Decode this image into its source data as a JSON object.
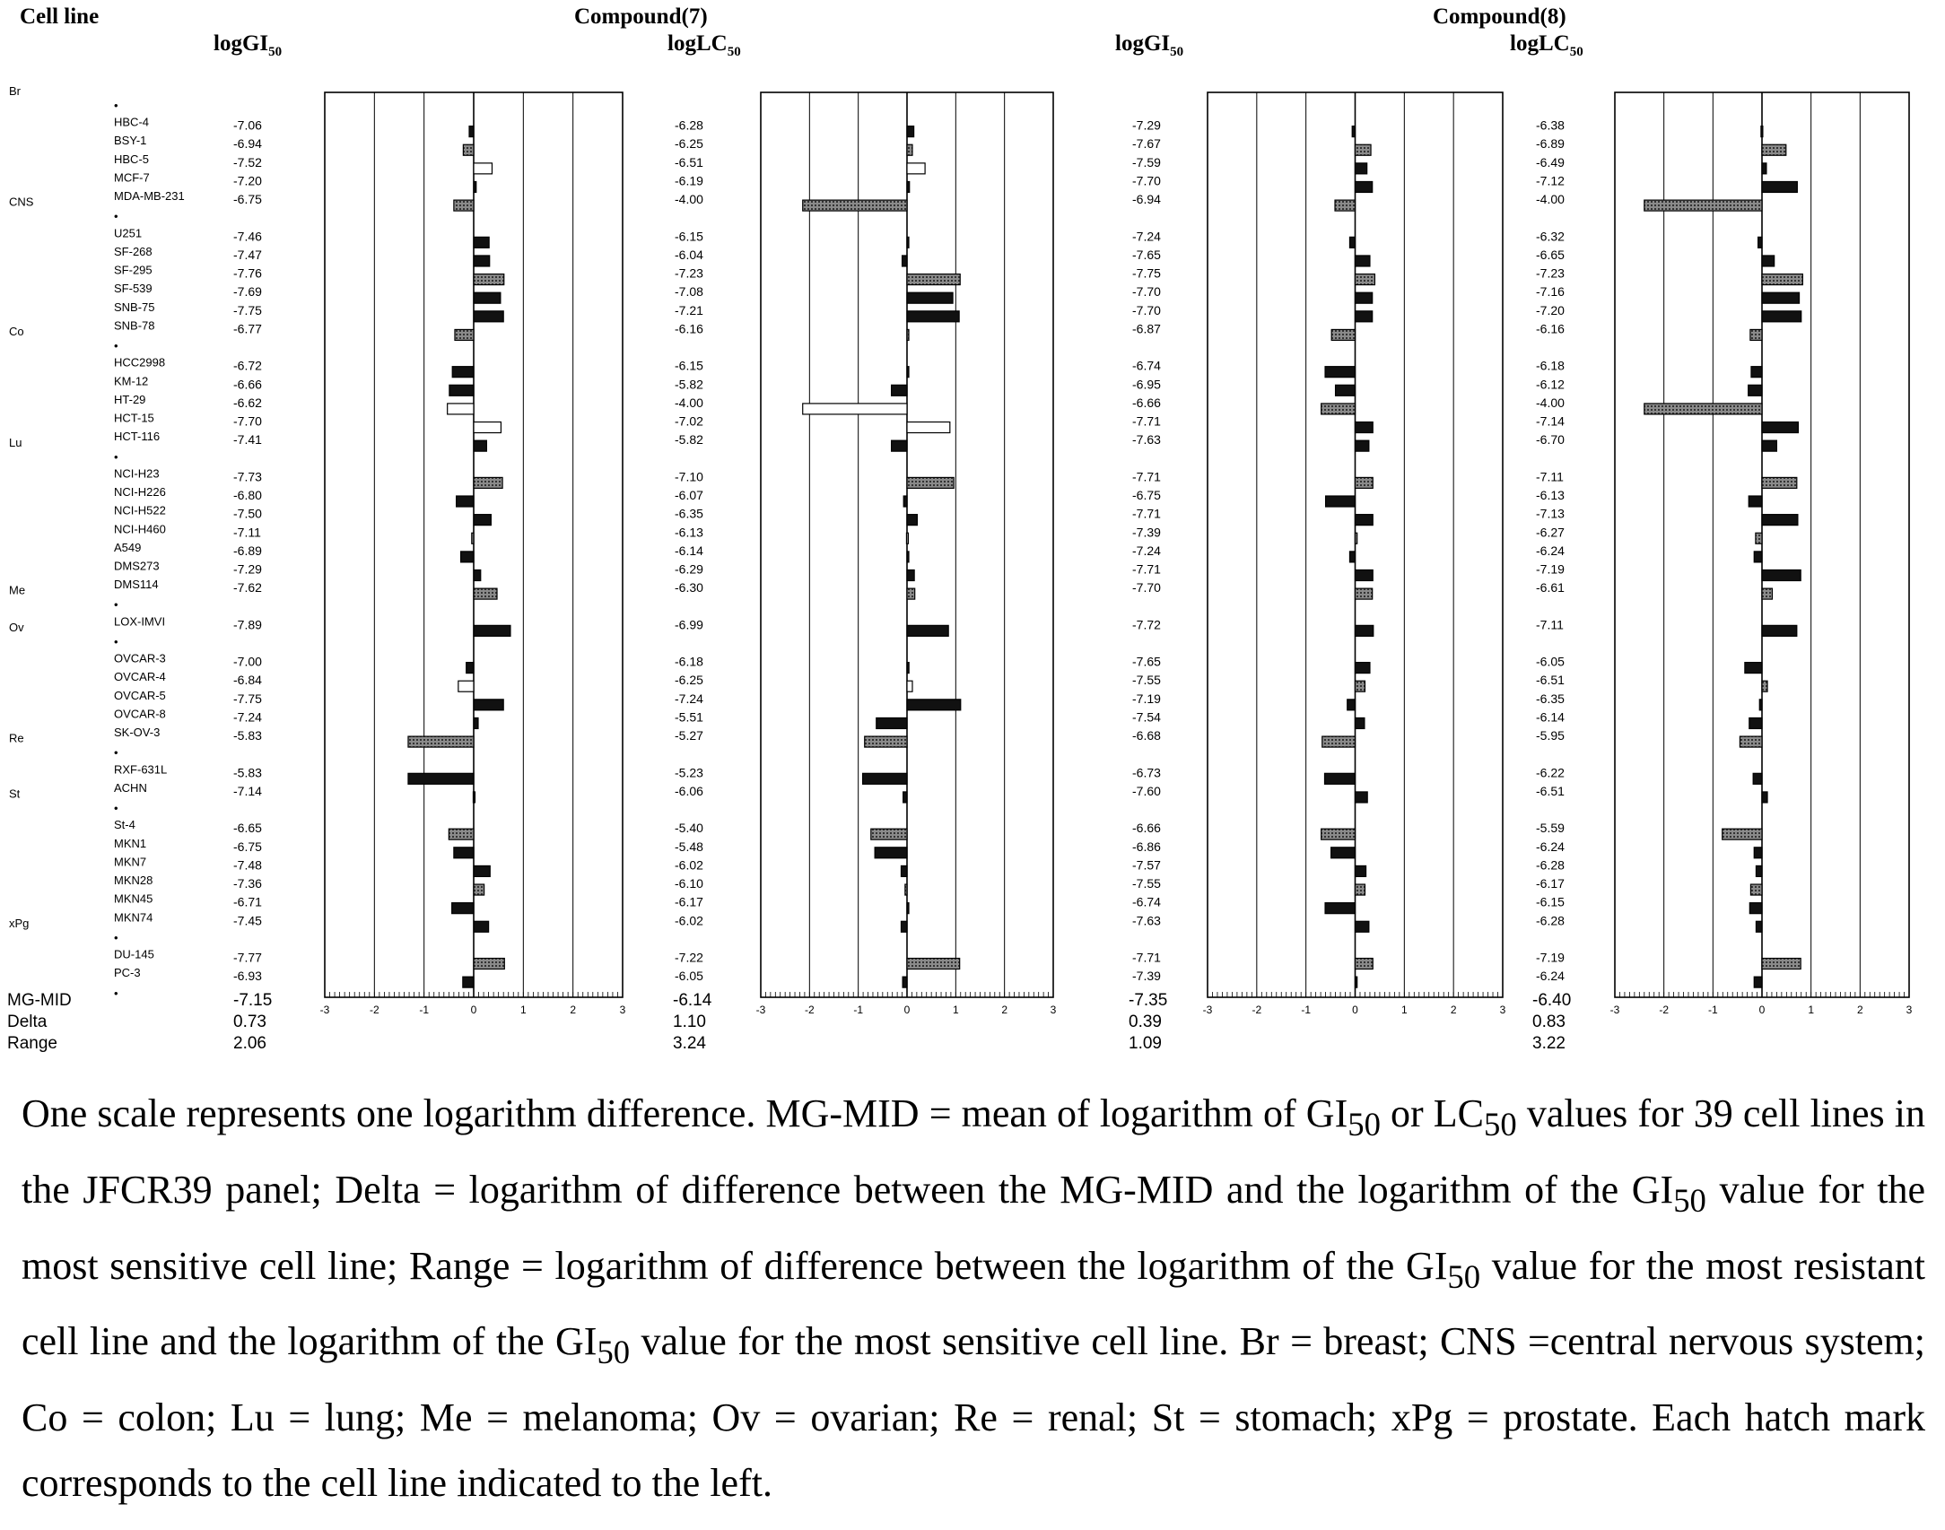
{
  "header": {
    "cell_line": "Cell line",
    "log_gi50": "logGI",
    "log_gi50_sub": "50",
    "log_lc50": "logLC",
    "log_lc50_sub": "50",
    "compound7": "Compound(7)",
    "compound8": "Compound(8)"
  },
  "summary_labels": [
    "MG-MID",
    "Delta",
    "Range"
  ],
  "summary_values": {
    "c7_gi50": [
      "-7.15",
      "0.73",
      "2.06"
    ],
    "c7_lc50": [
      "-6.14",
      "1.10",
      "3.24"
    ],
    "c8_gi50": [
      "-7.35",
      "0.39",
      "1.09"
    ],
    "c8_lc50": [
      "-6.40",
      "0.83",
      "3.22"
    ]
  },
  "axis_ticks": [
    "-3",
    "-2",
    "-1",
    "0",
    "1",
    "2",
    "3"
  ],
  "chart_data": {
    "type": "bar",
    "orientation": "horizontal",
    "note": "mean graph: bar = MG-MID minus log value (deviation in log units)",
    "xlim": [
      -3,
      3
    ],
    "groups": [
      {
        "label": "Br",
        "cell_lines": [
          "HBC-4",
          "BSY-1",
          "HBC-5",
          "MCF-7",
          "MDA-MB-231"
        ]
      },
      {
        "label": "CNS",
        "cell_lines": [
          "U251",
          "SF-268",
          "SF-295",
          "SF-539",
          "SNB-75",
          "SNB-78"
        ]
      },
      {
        "label": "Co",
        "cell_lines": [
          "HCC2998",
          "KM-12",
          "HT-29",
          "HCT-15",
          "HCT-116"
        ]
      },
      {
        "label": "Lu",
        "cell_lines": [
          "NCI-H23",
          "NCI-H226",
          "NCI-H522",
          "NCI-H460",
          "A549",
          "DMS273",
          "DMS114"
        ]
      },
      {
        "label": "Me",
        "cell_lines": [
          "LOX-IMVI"
        ]
      },
      {
        "label": "Ov",
        "cell_lines": [
          "OVCAR-3",
          "OVCAR-4",
          "OVCAR-5",
          "OVCAR-8",
          "SK-OV-3"
        ]
      },
      {
        "label": "Re",
        "cell_lines": [
          "RXF-631L",
          "ACHN"
        ]
      },
      {
        "label": "St",
        "cell_lines": [
          "St-4",
          "MKN1",
          "MKN7",
          "MKN28",
          "MKN45",
          "MKN74"
        ]
      },
      {
        "label": "xPg",
        "cell_lines": [
          "DU-145",
          "PC-3"
        ]
      }
    ],
    "series": [
      {
        "name": "Compound(7) logGI50",
        "mg_mid": -7.15,
        "values": [
          -7.06,
          -6.94,
          -7.52,
          -7.2,
          -6.75,
          -7.46,
          -7.47,
          -7.76,
          -7.69,
          -7.75,
          -6.77,
          -6.72,
          -6.66,
          -6.62,
          -7.7,
          -7.41,
          -7.73,
          -6.8,
          -7.5,
          -7.11,
          -6.89,
          -7.29,
          -7.62,
          -7.89,
          -7.0,
          -6.84,
          -7.75,
          -7.24,
          -5.83,
          -5.83,
          -7.14,
          -6.65,
          -6.75,
          -7.48,
          -7.36,
          -6.71,
          -7.45,
          -7.77,
          -6.93
        ],
        "display": [
          "-7.06",
          "-6.94",
          "-7.52",
          "-7.20",
          "-6.75",
          "-7.46",
          "-7.47",
          "-7.76",
          "-7.69",
          "-7.75",
          "-6.77",
          "-6.72",
          "-6.66",
          "-6.62",
          "-7.70",
          "-7.41",
          "-7.73",
          "-6.80",
          "-7.50",
          "-7.11",
          "-6.89",
          "-7.29",
          "-7.62",
          "-7.89",
          "-7.00",
          "-6.84",
          "-7.75",
          "-7.24",
          "-5.83",
          "-5.83",
          "-7.14",
          "-6.65",
          "-6.75",
          "-7.48",
          "-7.36",
          "-6.71",
          "-7.45",
          "-7.77",
          "-6.93"
        ]
      },
      {
        "name": "Compound(7) logLC50",
        "mg_mid": -6.14,
        "values": [
          -6.28,
          -6.25,
          -6.51,
          -6.19,
          -4.0,
          -6.15,
          -6.04,
          -7.23,
          -7.08,
          -7.21,
          -6.16,
          -6.15,
          -5.82,
          -4.0,
          -7.02,
          -5.82,
          -7.1,
          -6.07,
          -6.35,
          -6.13,
          -6.14,
          -6.29,
          -6.3,
          -6.99,
          -6.18,
          -6.25,
          -7.24,
          -5.51,
          -5.27,
          -5.23,
          -6.06,
          -5.4,
          -5.48,
          -6.02,
          -6.1,
          -6.17,
          -6.02,
          -7.22,
          -6.05
        ],
        "display": [
          "-6.28",
          "-6.25",
          "-6.51",
          "-6.19",
          "-4.00",
          "-6.15",
          "-6.04",
          "-7.23",
          "-7.08",
          "-7.21",
          "-6.16",
          "-6.15",
          "-5.82",
          "-4.00",
          "-7.02",
          "-5.82",
          "-7.10",
          "-6.07",
          "-6.35",
          "-6.13",
          "-6.14",
          "-6.29",
          "-6.30",
          "-6.99",
          "-6.18",
          "-6.25",
          "-7.24",
          "-5.51",
          "-5.27",
          "-5.23",
          "-6.06",
          "-5.40",
          "-5.48",
          "-6.02",
          "-6.10",
          "-6.17",
          "-6.02",
          "-7.22",
          "-6.05"
        ]
      },
      {
        "name": "Compound(8) logGI50",
        "mg_mid": -7.35,
        "values": [
          -7.29,
          -7.67,
          -7.59,
          -7.7,
          -6.94,
          -7.24,
          -7.65,
          -7.75,
          -7.7,
          -7.7,
          -6.87,
          -6.74,
          -6.95,
          -6.66,
          -7.71,
          -7.63,
          -7.71,
          -6.75,
          -7.71,
          -7.39,
          -7.24,
          -7.71,
          -7.7,
          -7.72,
          -7.65,
          -7.55,
          -7.19,
          -7.54,
          -6.68,
          -6.73,
          -7.6,
          -6.66,
          -6.86,
          -7.57,
          -7.55,
          -6.74,
          -7.63,
          -7.71,
          -7.39
        ],
        "display": [
          "-7.29",
          "-7.67",
          "-7.59",
          "-7.70",
          "-6.94",
          "-7.24",
          "-7.65",
          "-7.75",
          "-7.70",
          "-7.70",
          "-6.87",
          "-6.74",
          "-6.95",
          "-6.66",
          "-7.71",
          "-7.63",
          "-7.71",
          "-6.75",
          "-7.71",
          "-7.39",
          "-7.24",
          "-7.71",
          "-7.70",
          "-7.72",
          "-7.65",
          "-7.55",
          "-7.19",
          "-7.54",
          "-6.68",
          "-6.73",
          "-7.60",
          "-6.66",
          "-6.86",
          "-7.57",
          "-7.55",
          "-6.74",
          "-7.63",
          "-7.71",
          "-7.39"
        ]
      },
      {
        "name": "Compound(8) logLC50",
        "mg_mid": -6.4,
        "values": [
          -6.38,
          -6.89,
          -6.49,
          -7.12,
          -4.0,
          -6.32,
          -6.65,
          -7.23,
          -7.16,
          -7.2,
          -6.16,
          -6.18,
          -6.12,
          -4.0,
          -7.14,
          -6.7,
          -7.11,
          -6.13,
          -7.13,
          -6.27,
          -6.24,
          -7.19,
          -6.61,
          -7.11,
          -6.05,
          -6.51,
          -6.35,
          -6.14,
          -5.95,
          -6.22,
          -6.51,
          -5.59,
          -6.24,
          -6.28,
          -6.17,
          -6.15,
          -6.28,
          -7.19,
          -6.24
        ],
        "display": [
          "-6.38",
          "-6.89",
          "-6.49",
          "-7.12",
          "-4.00",
          "-6.32",
          "-6.65",
          "-7.23",
          "-7.16",
          "-7.20",
          "-6.16",
          "-6.18",
          "-6.12",
          "-4.00",
          "-7.14",
          "-6.70",
          "-7.11",
          "-6.13",
          "-7.13",
          "-6.27",
          "-6.24",
          "-7.19",
          "-6.61",
          "-7.11",
          "-6.05",
          "-6.51",
          "-6.35",
          "-6.14",
          "-5.95",
          "-6.22",
          "-6.51",
          "-5.59",
          "-6.24",
          "-6.28",
          "-6.17",
          "-6.15",
          "-6.28",
          "-7.19",
          "-6.24"
        ]
      }
    ]
  },
  "caption": {
    "line1_a": "One scale represents one logarithm difference. MG-MID = mean of logarithm of GI",
    "line1_b": " or LC",
    "line2_a": "values for 39 cell lines in the JFCR39 panel; Delta = logarithm of difference between the MG-MID and the logarithm of the GI",
    "line2_b": " value for the most sensitive cell line; Range = logarithm of difference between the logarithm of the GI",
    "line3_a": " value for the most resistant cell line and the logarithm of the GI",
    "line3_b": " value for the most sensitive cell line. Br = breast; CNS =central nervous system; Co = colon; Lu = lung; Me = melanoma; Ov = ovarian; Re = renal; St = stomach; xPg = prostate. Each hatch mark corresponds to the cell line indicated to the left.",
    "sub": "50"
  }
}
